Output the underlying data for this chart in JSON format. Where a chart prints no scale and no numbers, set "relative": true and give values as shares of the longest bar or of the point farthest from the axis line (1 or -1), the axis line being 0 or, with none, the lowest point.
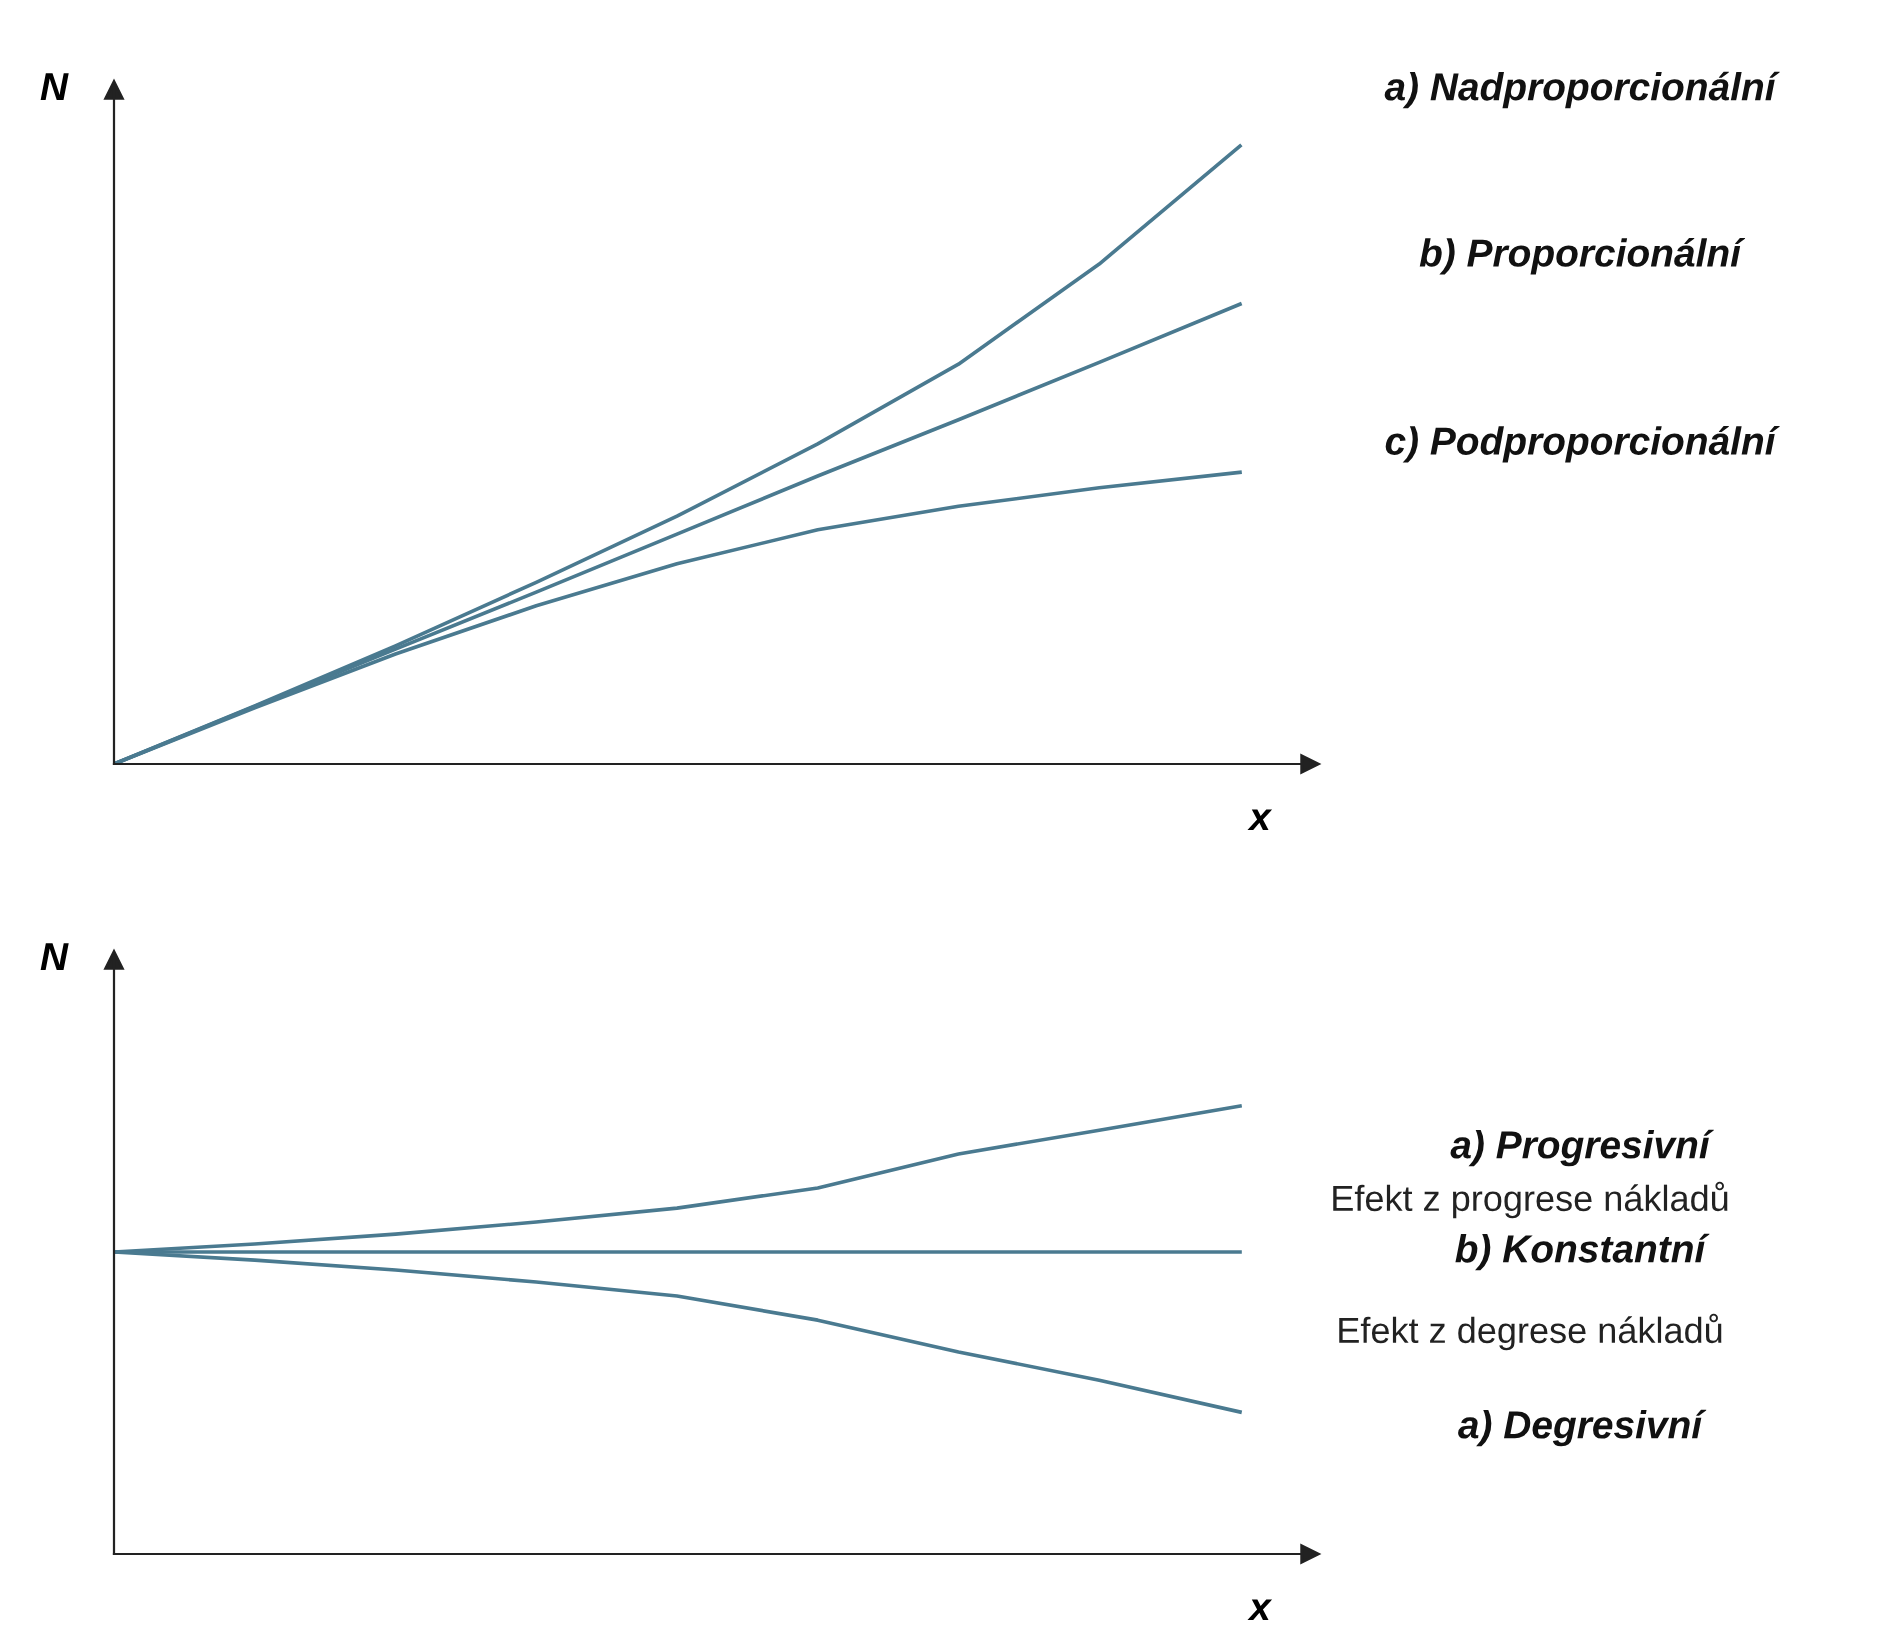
{
  "chart_data": [
    {
      "type": "line",
      "relative": true,
      "ylabel": "N",
      "xlabel": "x",
      "categories": [
        null,
        null,
        null,
        null,
        null,
        null,
        null,
        null,
        null
      ],
      "series": [
        {
          "name": "a) Nadproporcionální",
          "color": "#4a7a90",
          "values": [
            0,
            0.094,
            0.191,
            0.294,
            0.401,
            0.518,
            0.647,
            0.809,
            1
          ]
        },
        {
          "name": "b) Proporcionální",
          "color": "#4a7a90",
          "values": [
            0,
            0.093,
            0.186,
            0.278,
            0.372,
            0.466,
            0.557,
            0.65,
            0.744
          ]
        },
        {
          "name": "c) Podproporcionální",
          "color": "#4a7a90",
          "values": [
            0,
            0.091,
            0.178,
            0.256,
            0.324,
            0.379,
            0.417,
            0.447,
            0.472
          ]
        }
      ]
    },
    {
      "type": "line",
      "relative": true,
      "ylabel": "N",
      "xlabel": "x",
      "categories": [
        null,
        null,
        null,
        null,
        null,
        null,
        null,
        null,
        null
      ],
      "series": [
        {
          "name": "a) Progresivní",
          "color": "#4a7a90",
          "values": [
            0.674,
            0.692,
            0.714,
            0.741,
            0.772,
            0.817,
            0.893,
            0.946,
            1
          ]
        },
        {
          "name": "b) Konstantní",
          "color": "#4a7a90",
          "values": [
            0.674,
            0.674,
            0.674,
            0.674,
            0.674,
            0.674,
            0.674,
            0.674,
            0.674
          ]
        },
        {
          "name": "a) Degresivní",
          "color": "#4a7a90",
          "values": [
            0.674,
            0.656,
            0.634,
            0.607,
            0.576,
            0.522,
            0.451,
            0.388,
            0.317
          ]
        }
      ],
      "annotations": [
        "Efekt z progrese nákladů",
        "Efekt z degrese nákladů"
      ]
    }
  ]
}
